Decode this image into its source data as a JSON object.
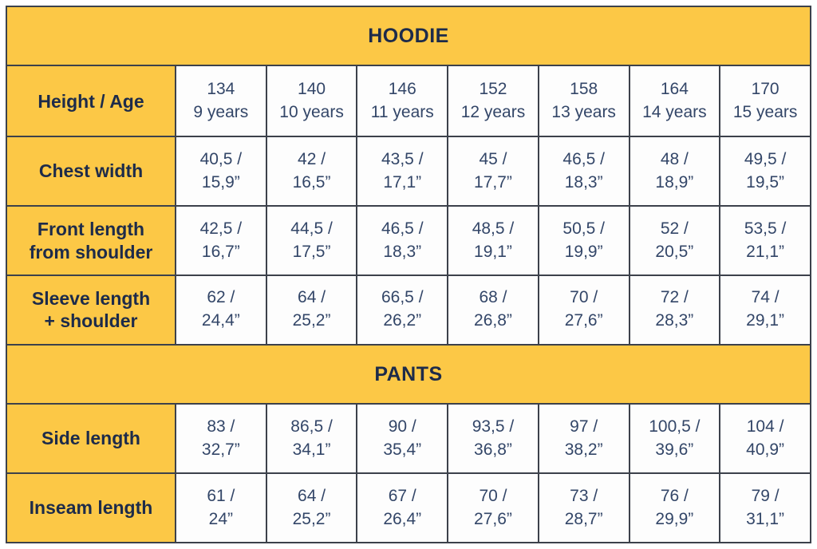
{
  "theme": {
    "yellow": "#FCC846",
    "cell_background": "#FDFDFD",
    "border_color": "#3C414B",
    "label_text_color": "#1D2B4A",
    "value_text_color": "#334668"
  },
  "chart_data": {
    "type": "table",
    "sections": [
      {
        "title": "HOODIE",
        "header_row": {
          "label": "Height / Age",
          "columns": [
            {
              "size": "134",
              "age": "9 years"
            },
            {
              "size": "140",
              "age": "10 years"
            },
            {
              "size": "146",
              "age": "11 years"
            },
            {
              "size": "152",
              "age": "12 years"
            },
            {
              "size": "158",
              "age": "13 years"
            },
            {
              "size": "164",
              "age": "14 years"
            },
            {
              "size": "170",
              "age": "15 years"
            }
          ]
        },
        "rows": [
          {
            "label": "Chest width",
            "values": [
              "40,5 / 15,9”",
              "42 / 16,5”",
              "43,5 / 17,1”",
              "45 / 17,7”",
              "46,5 / 18,3”",
              "48 / 18,9”",
              "49,5 / 19,5”"
            ]
          },
          {
            "label": "Front length\nfrom shoulder",
            "values": [
              "42,5 / 16,7”",
              "44,5 / 17,5”",
              "46,5 / 18,3”",
              "48,5 / 19,1”",
              "50,5 / 19,9”",
              "52 / 20,5”",
              "53,5 / 21,1”"
            ]
          },
          {
            "label": "Sleeve length\n+ shoulder",
            "values": [
              "62 / 24,4”",
              "64 / 25,2”",
              "66,5 / 26,2”",
              "68 / 26,8”",
              "70 / 27,6”",
              "72 / 28,3”",
              "74 / 29,1”"
            ]
          }
        ]
      },
      {
        "title": "PANTS",
        "rows": [
          {
            "label": "Side length",
            "values": [
              "83 / 32,7”",
              "86,5 / 34,1”",
              "90 / 35,4”",
              "93,5 / 36,8”",
              "97 / 38,2”",
              "100,5 / 39,6”",
              "104 / 40,9”"
            ]
          },
          {
            "label": "Inseam length",
            "values": [
              "61 / 24”",
              "64 / 25,2”",
              "67 / 26,4”",
              "70 / 27,6”",
              "73 / 28,7”",
              "76 / 29,9”",
              "79 / 31,1”"
            ]
          }
        ]
      }
    ]
  }
}
